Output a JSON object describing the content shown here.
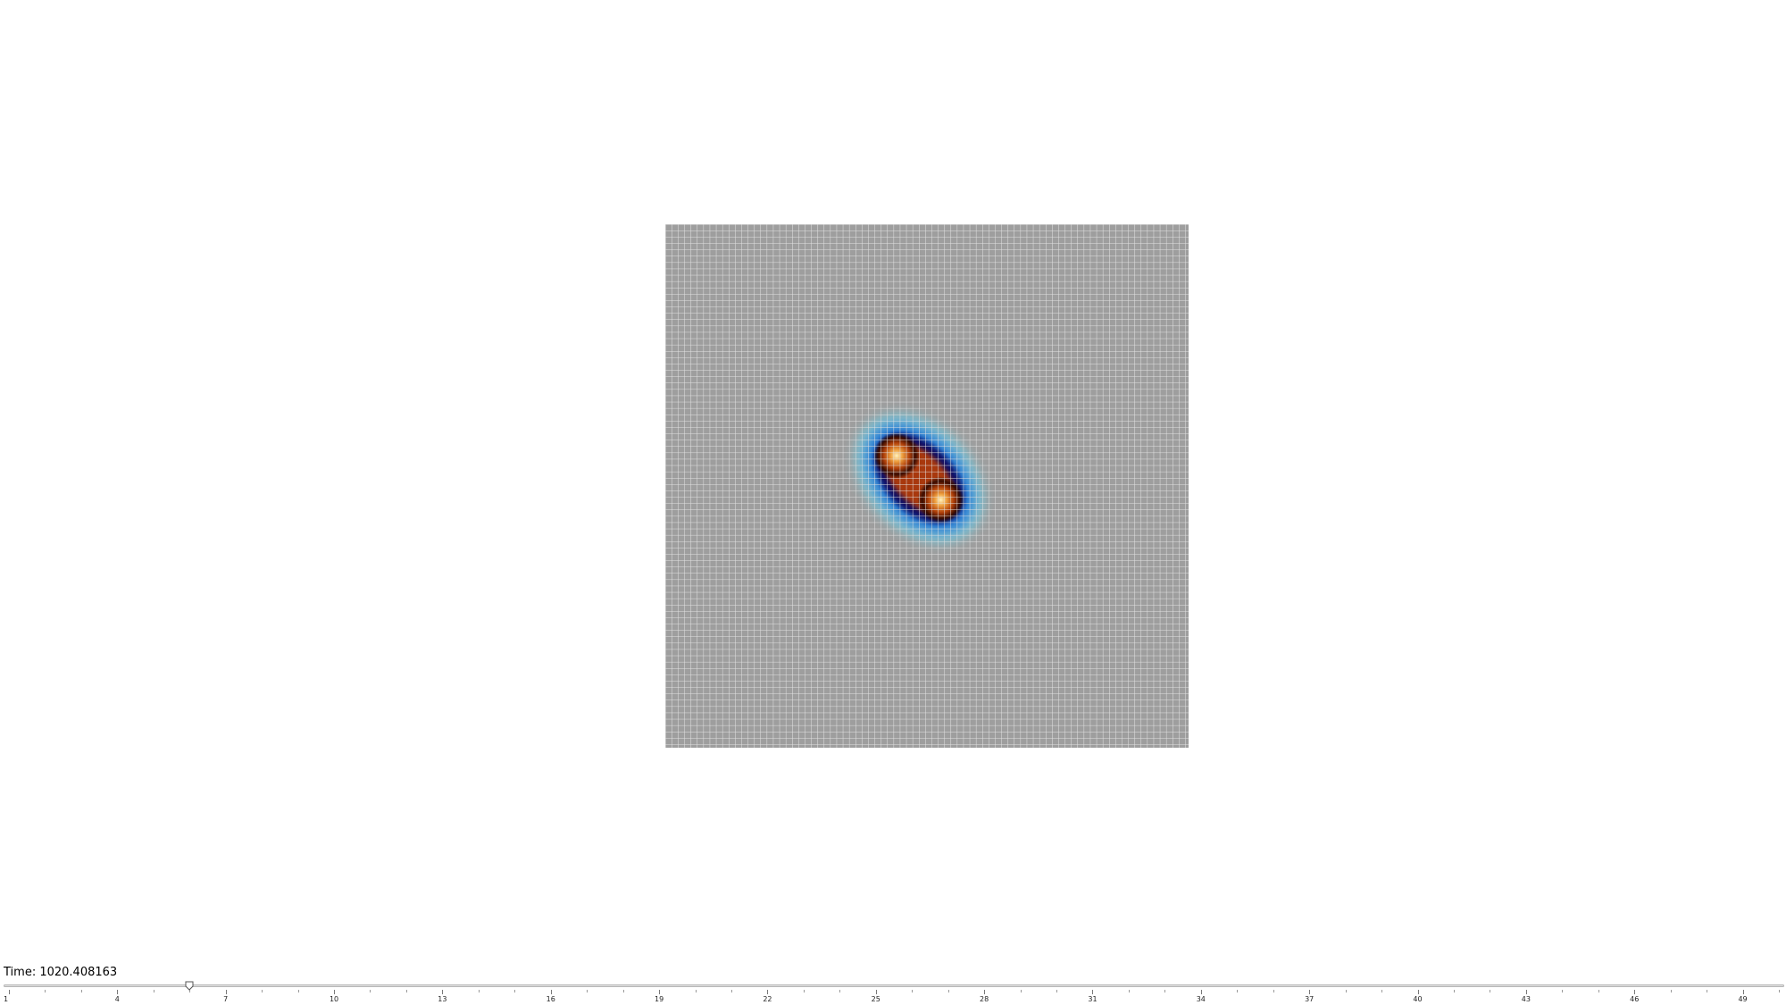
{
  "simulation": {
    "colormap": [
      "#000033",
      "#0b1f8c",
      "#1f5fd0",
      "#3fa8d8",
      "#8fd0d8",
      "#a0a0a0"
    ],
    "hot_colormap": [
      "#1a0500",
      "#6a1a00",
      "#b0400a",
      "#d8701a",
      "#eea040",
      "#fff4c0"
    ],
    "background_color": "#9e9e9e",
    "grid_line_color": "#e4e4e4"
  },
  "timeline": {
    "time_prefix": "Time: ",
    "time_value": "1020.408163",
    "min": 1,
    "max": 50,
    "current": 6,
    "tick_labels": [
      "1",
      "4",
      "7",
      "10",
      "13",
      "16",
      "19",
      "22",
      "25",
      "28",
      "31",
      "34",
      "37",
      "40",
      "43",
      "46",
      "49"
    ]
  }
}
